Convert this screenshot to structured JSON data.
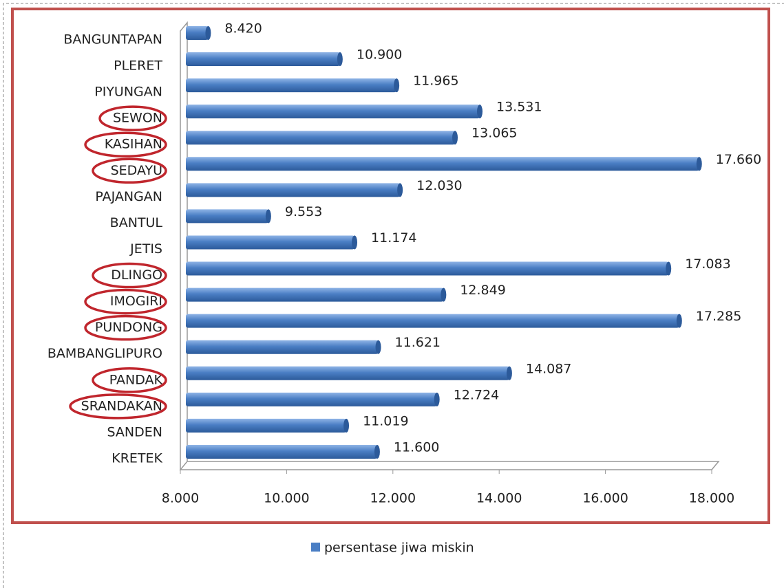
{
  "chart_data": {
    "type": "bar",
    "orientation": "horizontal",
    "categories": [
      "BANGUNTAPAN",
      "PLERET",
      "PIYUNGAN",
      "SEWON",
      "KASIHAN",
      "SEDAYU",
      "PAJANGAN",
      "BANTUL",
      "JETIS",
      "DLINGO",
      "IMOGIRI",
      "PUNDONG",
      "BAMBANGLIPURO",
      "PANDAK",
      "SRANDAKAN",
      "SANDEN",
      "KRETEK"
    ],
    "series": [
      {
        "name": "persentase jiwa miskin",
        "color": "#4a7ec4",
        "values": [
          8.42,
          10.9,
          11.965,
          13.531,
          13.065,
          17.66,
          12.03,
          9.553,
          11.174,
          17.083,
          12.849,
          17.285,
          11.621,
          14.087,
          12.724,
          11.019,
          11.6
        ],
        "value_labels": [
          "8.420",
          "10.900",
          "11.965",
          "13.531",
          "13.065",
          "17.660",
          "12.030",
          "9.553",
          "11.174",
          "17.083",
          "12.849",
          "17.285",
          "11.621",
          "14.087",
          "12.724",
          "11.019",
          "11.600"
        ]
      }
    ],
    "xlim": [
      8,
      18
    ],
    "xticks": [
      {
        "value": 8,
        "label": "8.000"
      },
      {
        "value": 10,
        "label": "10.000"
      },
      {
        "value": 12,
        "label": "12.000"
      },
      {
        "value": 14,
        "label": "14.000"
      },
      {
        "value": 16,
        "label": "16.000"
      },
      {
        "value": 18,
        "label": "18.000"
      }
    ],
    "highlighted_categories": [
      3,
      4,
      5,
      9,
      10,
      11,
      13,
      14
    ],
    "highlight_color": "#c0262d",
    "legend": "bottom"
  }
}
